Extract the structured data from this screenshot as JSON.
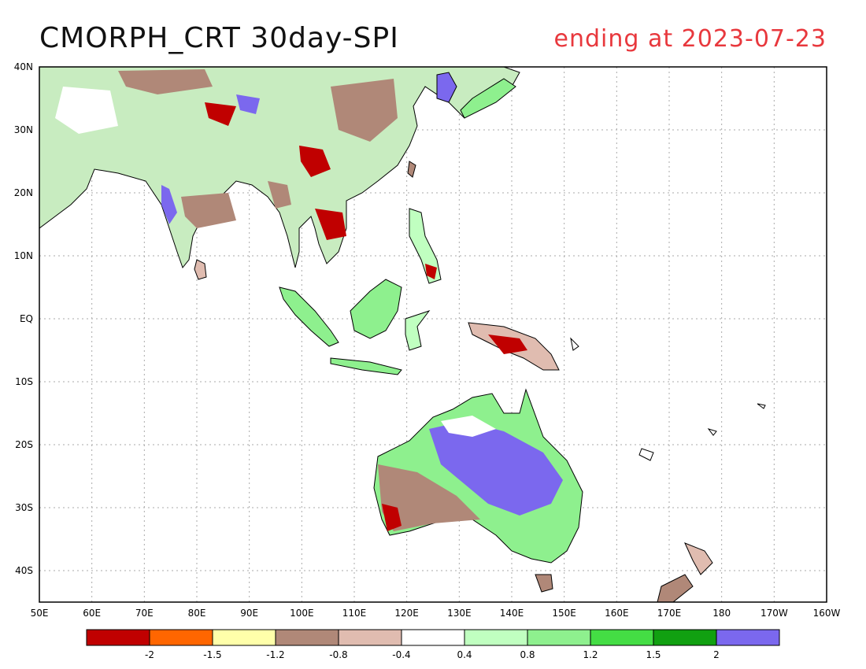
{
  "title": {
    "main": "CMORPH_CRT 30day-SPI",
    "ending": "ending at 2023-07-23"
  },
  "map": {
    "lon_range": [
      50,
      200
    ],
    "lat_range": [
      -45,
      40
    ],
    "lon_ticks": [
      "50E",
      "60E",
      "70E",
      "80E",
      "90E",
      "100E",
      "110E",
      "120E",
      "130E",
      "140E",
      "150E",
      "160E",
      "170E",
      "180",
      "170W",
      "160W"
    ],
    "lat_ticks": [
      "40N",
      "30N",
      "20N",
      "10N",
      "EQ",
      "10S",
      "20S",
      "30S",
      "40S"
    ],
    "grid": true
  },
  "legend": {
    "colors": [
      "#c00000",
      "#ff6600",
      "#ffffaa",
      "#b08878",
      "#e0bcb0",
      "#ffffff",
      "#c0ffc0",
      "#8ef08e",
      "#44dd44",
      "#11a011",
      "#7b68ee"
    ],
    "labels": [
      "-2",
      "-1.5",
      "-1.2",
      "-0.8",
      "-0.4",
      "0.4",
      "0.8",
      "1.2",
      "1.5",
      "2"
    ]
  }
}
